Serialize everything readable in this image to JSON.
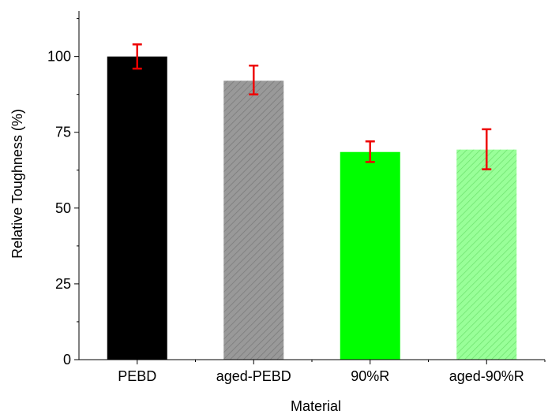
{
  "chart_data": {
    "type": "bar",
    "title": "",
    "xlabel": "Material",
    "ylabel": "Relative Toughness (%)",
    "ylim": [
      0,
      115
    ],
    "yticks": [
      0,
      25,
      50,
      75,
      100
    ],
    "grid": false,
    "legend": "none",
    "categories": [
      "PEBD",
      "aged-PEBD",
      "90%R",
      "aged-90%R"
    ],
    "values": [
      100,
      92,
      68.5,
      69.3
    ],
    "errors_low": [
      96,
      87.5,
      65.2,
      62.8
    ],
    "errors_high": [
      104,
      97,
      72,
      76
    ],
    "bar_colors": [
      "#000000",
      "#999999",
      "#00ff00",
      "#99ff99"
    ],
    "bar_patterns": [
      "solid",
      "hatched",
      "solid",
      "hatched"
    ],
    "error_bar_color": "#ee0000"
  }
}
